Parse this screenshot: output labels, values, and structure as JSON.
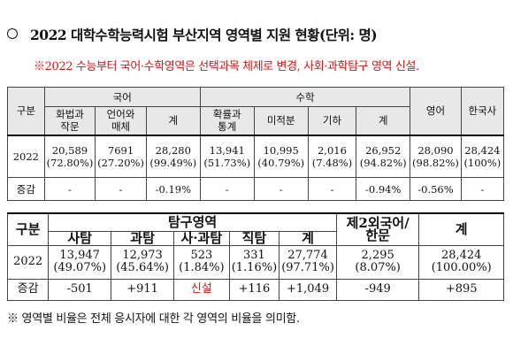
{
  "title": "2022 대학수학능력시험 부산지역 영역별 지원 현황(단위: 명)",
  "note": "※2022 수능부터 국어·수학영역은 선택과목 체제로 변경, 사회·과학탐구 영역 신설.",
  "table1": {
    "gubun": "구분",
    "korean": "국어",
    "math": "수학",
    "english": "영어",
    "history": "한국사",
    "sub": [
      "화법과\n작문",
      "언어와\n매체",
      "계",
      "확률과\n통계",
      "미적분",
      "기하",
      "계"
    ],
    "row2022": {
      "label": "2022",
      "cells": [
        "20,589\n(72.80%)",
        "7691\n(27.20%)",
        "28,280\n(99.49%)",
        "13,941\n(51.73%)",
        "10,995\n(40.79%)",
        "2,016\n(7.48%)",
        "26,952\n(94.82%)",
        "28,090\n(98.82%)",
        "28,424\n(100%)"
      ]
    },
    "rowChange": {
      "label": "증감",
      "cells": [
        "-",
        "-",
        "-0.19%",
        "-",
        "-",
        "-",
        "-0.94%",
        "-0.56%",
        "-"
      ]
    }
  },
  "table2": {
    "gubun": "구분",
    "inquiry": "탐구영역",
    "foreign": "제2외국어/\n한문",
    "total": "계",
    "sub": [
      "사탐",
      "과탐",
      "사·과탐",
      "직탐",
      "계"
    ],
    "row2022": {
      "label": "2022",
      "cells": [
        "13,947\n(49.07%)",
        "12,973\n(45.64%)",
        "523\n(1.84%)",
        "331\n(1.16%)",
        "27,774\n(97.71%)",
        "2,295\n(8.07%)",
        "28,424\n(100.00%)"
      ]
    },
    "rowChange": {
      "label": "증감",
      "cells": [
        "-501",
        "+911",
        "신설",
        "+116",
        "+1,049",
        "-949",
        "+895"
      ]
    }
  },
  "footnote": "※ 영역별 비율은 전체 응시자에 대한 각 영역의 비율을 의미함."
}
